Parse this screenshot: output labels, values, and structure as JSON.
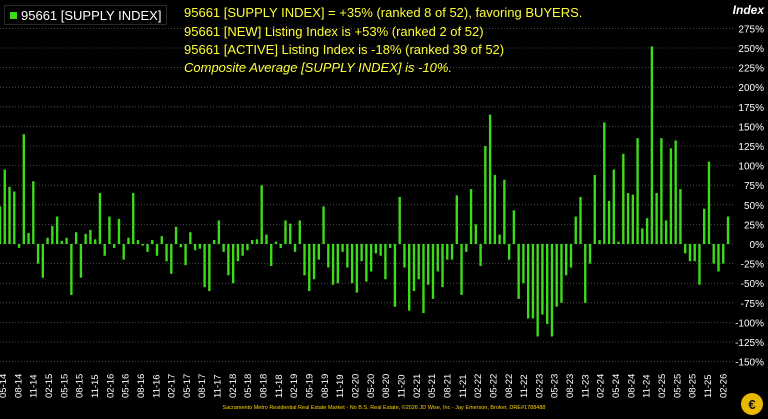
{
  "legend": {
    "label": "95661 [SUPPLY INDEX]",
    "color": "#3ddc1a"
  },
  "annotations": [
    "95661 [SUPPLY INDEX] = +35% (ranked 8 of 52), favoring BUYERS.",
    "95661 [NEW] Listing Index is +53% (ranked 2 of 52)",
    "95661 [ACTIVE] Listing Index is -18% (ranked 39 of 52)",
    "Composite Average [SUPPLY INDEX] is -10%."
  ],
  "footer": "Sacramento Metro Residential Real Estate Market - No B.S. Real Estate, ©2026 JD Wise, Inc - Jay Emerson, Broker, DRE#1788488",
  "logo_glyph": "€",
  "chart_data": {
    "type": "bar",
    "color": "#3ddc1a",
    "yaxis_title": "Index",
    "ylim": [
      -150,
      280
    ],
    "yticks": [
      -150,
      -125,
      -100,
      -75,
      -50,
      -25,
      0,
      25,
      50,
      75,
      100,
      125,
      150,
      175,
      200,
      225,
      250,
      275
    ],
    "ytick_labels": [
      "-150%",
      "-125%",
      "-100%",
      "-75%",
      "-50%",
      "-25%",
      "0%",
      "25%",
      "50%",
      "75%",
      "100%",
      "125%",
      "150%",
      "175%",
      "200%",
      "225%",
      "250%",
      "275%"
    ],
    "grid": true,
    "x_tick_labels": [
      "05-14",
      "08-14",
      "11-14",
      "02-15",
      "05-15",
      "08-15",
      "11-15",
      "02-16",
      "05-16",
      "08-16",
      "11-16",
      "02-17",
      "05-17",
      "08-17",
      "11-17",
      "02-18",
      "05-18",
      "08-18",
      "11-18",
      "02-19",
      "05-19",
      "08-19",
      "11-19",
      "02-20",
      "05-20",
      "08-20",
      "11-20",
      "02-21",
      "05-21",
      "08-21",
      "11-21",
      "02-22",
      "05-22",
      "08-22",
      "11-22",
      "02-23",
      "05-23",
      "08-23",
      "11-23",
      "02-24",
      "05-24",
      "08-24",
      "11-24",
      "02-25",
      "05-25",
      "08-25",
      "11-25",
      "02-26"
    ],
    "values": [
      48,
      95,
      73,
      67,
      -5,
      140,
      14,
      80,
      -25,
      -43,
      8,
      23,
      35,
      4,
      8,
      -65,
      15,
      -43,
      13,
      18,
      6,
      65,
      -15,
      35,
      -5,
      32,
      -20,
      8,
      65,
      5,
      -2,
      -10,
      5,
      -15,
      10,
      -22,
      -38,
      22,
      -4,
      -27,
      15,
      -8,
      -6,
      -55,
      -60,
      5,
      30,
      -10,
      -40,
      -50,
      -22,
      -15,
      -8,
      5,
      6,
      75,
      12,
      -28,
      3,
      -5,
      30,
      26,
      -10,
      30,
      -40,
      -60,
      -45,
      -20,
      48,
      -30,
      -52,
      -50,
      -10,
      -30,
      -50,
      -62,
      -22,
      -48,
      -35,
      -12,
      -15,
      -45,
      -5,
      -80,
      60,
      -30,
      -85,
      -60,
      -45,
      -88,
      -52,
      -70,
      -35,
      -55,
      -20,
      -20,
      62,
      -65,
      -10,
      70,
      25,
      -28,
      125,
      165,
      88,
      12,
      82,
      -20,
      43,
      -70,
      -50,
      -95,
      -95,
      -118,
      -90,
      -102,
      -118,
      -80,
      -75,
      -40,
      -30,
      35,
      60,
      -75,
      -25,
      88,
      5,
      155,
      55,
      95,
      3,
      115,
      65,
      63,
      135,
      20,
      33,
      252,
      65,
      135,
      30,
      122,
      132,
      70,
      -12,
      -22,
      -22,
      -52,
      45,
      105,
      -25,
      -35,
      -25,
      35
    ]
  }
}
